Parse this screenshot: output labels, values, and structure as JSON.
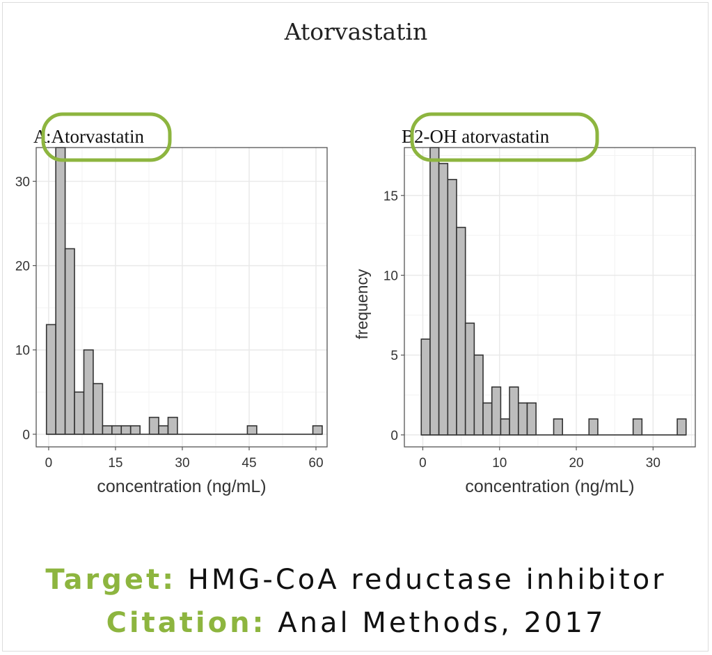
{
  "page_title": "Atorvastatin",
  "accent_color": "#8db53f",
  "footer": {
    "target_label": "Target:",
    "target_value": "HMG-CoA reductase inhibitor",
    "citation_label": "Citation:",
    "citation_value": "Anal Methods, 2017"
  },
  "chart_data": [
    {
      "type": "bar",
      "panel_letter": "A",
      "title": ":Atorvastatin",
      "xlabel": "concentration (ng/mL)",
      "ylabel": "",
      "xlim": [
        -2.8,
        62.5
      ],
      "ylim": [
        -1.5,
        34
      ],
      "xticks": [
        0,
        15,
        30,
        45,
        60
      ],
      "yticks": [
        0,
        10,
        20,
        30
      ],
      "bin_width": 2.1,
      "bins": [
        {
          "x0": -0.5,
          "count": 13
        },
        {
          "x0": 1.6,
          "count": 34
        },
        {
          "x0": 3.7,
          "count": 22
        },
        {
          "x0": 5.8,
          "count": 5
        },
        {
          "x0": 7.9,
          "count": 10
        },
        {
          "x0": 10.0,
          "count": 6
        },
        {
          "x0": 12.1,
          "count": 1
        },
        {
          "x0": 14.2,
          "count": 1
        },
        {
          "x0": 16.3,
          "count": 1
        },
        {
          "x0": 18.4,
          "count": 1
        },
        {
          "x0": 22.6,
          "count": 2
        },
        {
          "x0": 24.7,
          "count": 1
        },
        {
          "x0": 26.8,
          "count": 2
        },
        {
          "x0": 44.6,
          "count": 1
        },
        {
          "x0": 59.3,
          "count": 1
        }
      ],
      "grid": true,
      "highlight_title": true
    },
    {
      "type": "bar",
      "panel_letter": "B",
      "title": "2-OH atorvastatin",
      "xlabel": "concentration (ng/mL)",
      "ylabel": "frequency",
      "xlim": [
        -2.4,
        35.5
      ],
      "ylim": [
        -0.75,
        18
      ],
      "xticks": [
        0,
        10,
        20,
        30
      ],
      "yticks": [
        0,
        5,
        10,
        15
      ],
      "bin_width": 1.15,
      "bins": [
        {
          "x0": -0.2,
          "count": 6
        },
        {
          "x0": 0.95,
          "count": 18
        },
        {
          "x0": 2.1,
          "count": 17
        },
        {
          "x0": 3.25,
          "count": 16
        },
        {
          "x0": 4.4,
          "count": 13
        },
        {
          "x0": 5.55,
          "count": 7
        },
        {
          "x0": 6.7,
          "count": 5
        },
        {
          "x0": 7.85,
          "count": 2
        },
        {
          "x0": 9.0,
          "count": 3
        },
        {
          "x0": 10.15,
          "count": 1
        },
        {
          "x0": 11.3,
          "count": 3
        },
        {
          "x0": 12.45,
          "count": 2
        },
        {
          "x0": 13.6,
          "count": 2
        },
        {
          "x0": 17.05,
          "count": 1
        },
        {
          "x0": 21.65,
          "count": 1
        },
        {
          "x0": 27.4,
          "count": 1
        },
        {
          "x0": 33.15,
          "count": 1
        }
      ],
      "grid": true,
      "highlight_title": true
    }
  ]
}
